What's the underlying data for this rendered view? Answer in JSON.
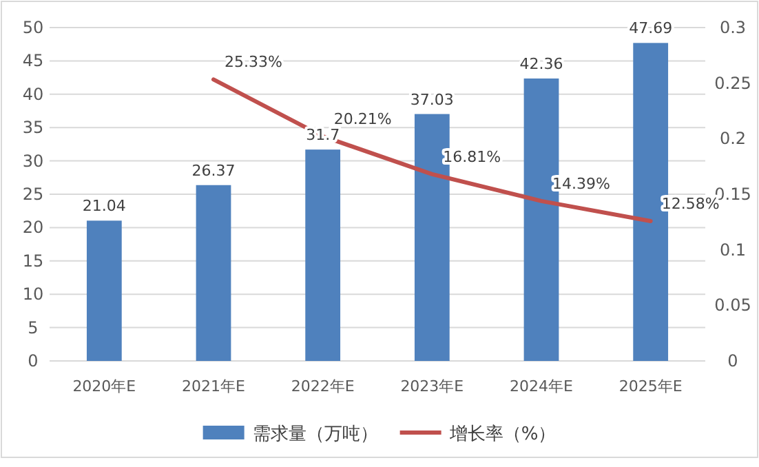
{
  "chart_data": {
    "type": "bar",
    "categories": [
      "2020年E",
      "2021年E",
      "2022年E",
      "2023年E",
      "2024年E",
      "2025年E"
    ],
    "series": [
      {
        "name": "需求量（万吨）",
        "color": "#4f81bd",
        "values": [
          21.04,
          26.37,
          31.7,
          37.03,
          42.36,
          47.69
        ],
        "value_labels": [
          "21.04",
          "26.37",
          "31.7",
          "37.03",
          "42.36",
          "47.69"
        ]
      },
      {
        "name": "增长率（%）",
        "type": "line",
        "axis": "y2",
        "color": "#c0504d",
        "values": [
          null,
          0.2533,
          0.2021,
          0.1681,
          0.1439,
          0.1258
        ],
        "value_labels": [
          null,
          "25.33%",
          "20.21%",
          "16.81%",
          "14.39%",
          "12.58%"
        ]
      }
    ],
    "ylim": [
      0,
      50
    ],
    "yticks": [
      0,
      5,
      10,
      15,
      20,
      25,
      30,
      35,
      40,
      45,
      50
    ],
    "y2lim": [
      0,
      0.3
    ],
    "y2ticks": [
      0,
      0.05,
      0.1,
      0.15,
      0.2,
      0.25,
      0.3
    ],
    "grid": "y",
    "legend": "bottom",
    "marker": "none",
    "line_style": "solid"
  }
}
